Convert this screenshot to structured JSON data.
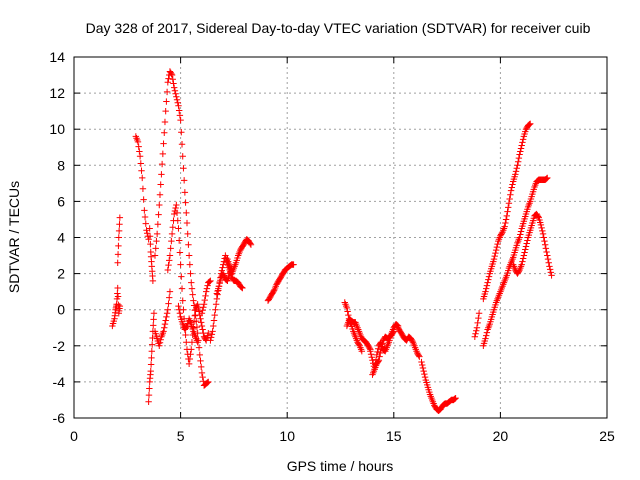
{
  "chart_data": {
    "type": "scatter",
    "title": "Day 328 of 2017, Sidereal Day-to-day VTEC variation (SDTVAR) for receiver cuib",
    "xlabel": "GPS time / hours",
    "ylabel": "SDTVAR / TECUs",
    "xlim": [
      0,
      25
    ],
    "ylim": [
      -6,
      14
    ],
    "xticks": [
      0,
      5,
      10,
      15,
      20,
      25
    ],
    "yticks": [
      -6,
      -4,
      -2,
      0,
      2,
      4,
      6,
      8,
      10,
      12,
      14
    ],
    "grid": true,
    "marker": "+",
    "color": "#ff0000",
    "tracks": [
      [
        [
          1.8,
          -0.9
        ],
        [
          1.9,
          -0.5
        ],
        [
          1.95,
          0
        ],
        [
          2.0,
          0.3
        ],
        [
          2.05,
          1.2
        ],
        [
          2.1,
          -0.2
        ],
        [
          2.15,
          0.2
        ]
      ],
      [
        [
          2.05,
          2.6
        ],
        [
          2.1,
          4.0
        ],
        [
          2.15,
          5.1
        ]
      ],
      [
        [
          2.9,
          9.6
        ],
        [
          3.0,
          9.3
        ],
        [
          3.1,
          8.5
        ],
        [
          3.2,
          7.3
        ],
        [
          3.3,
          5.5
        ],
        [
          3.4,
          4.4
        ],
        [
          3.5,
          3.9
        ]
      ],
      [
        [
          3.55,
          4.5
        ],
        [
          3.6,
          3.2
        ],
        [
          3.65,
          2.4
        ],
        [
          3.7,
          1.6
        ]
      ],
      [
        [
          3.5,
          -5.1
        ],
        [
          3.55,
          -4.0
        ],
        [
          3.6,
          -3.4
        ],
        [
          3.65,
          -2.3
        ],
        [
          3.7,
          -1.2
        ],
        [
          3.75,
          -0.2
        ]
      ],
      [
        [
          3.8,
          -1.2
        ],
        [
          3.9,
          -1.6
        ],
        [
          4.0,
          -2.0
        ],
        [
          4.1,
          -1.5
        ],
        [
          4.2,
          -1.2
        ],
        [
          4.3,
          -0.6
        ],
        [
          4.4,
          0
        ],
        [
          4.5,
          1.0
        ]
      ],
      [
        [
          3.8,
          3.0
        ],
        [
          3.9,
          4.2
        ],
        [
          4.0,
          5.8
        ],
        [
          4.1,
          7.5
        ],
        [
          4.2,
          9.2
        ],
        [
          4.3,
          11.0
        ],
        [
          4.4,
          12.6
        ],
        [
          4.5,
          13.2
        ],
        [
          4.6,
          13.0
        ],
        [
          4.7,
          12.3
        ],
        [
          4.8,
          11.8
        ],
        [
          4.9,
          11.3
        ],
        [
          5.0,
          10.5
        ],
        [
          5.1,
          8.5
        ],
        [
          5.2,
          6.5
        ],
        [
          5.3,
          4.8
        ],
        [
          5.4,
          3.0
        ],
        [
          5.5,
          1.5
        ],
        [
          5.6,
          0.5
        ],
        [
          5.7,
          -0.3
        ],
        [
          5.8,
          -1.3
        ],
        [
          5.9,
          -2.5
        ],
        [
          6.0,
          -3.5
        ],
        [
          6.1,
          -4.2
        ],
        [
          6.2,
          -4.1
        ],
        [
          6.3,
          -4.0
        ]
      ],
      [
        [
          4.4,
          2.2
        ],
        [
          4.5,
          3.0
        ],
        [
          4.6,
          4.2
        ],
        [
          4.7,
          5.3
        ],
        [
          4.8,
          5.8
        ],
        [
          4.9,
          4.5
        ],
        [
          5.0,
          2.5
        ],
        [
          5.1,
          0.5
        ],
        [
          5.2,
          -1.0
        ],
        [
          5.3,
          -2.2
        ],
        [
          5.4,
          -3.0
        ],
        [
          5.5,
          -2.2
        ],
        [
          5.6,
          -1.0
        ],
        [
          5.7,
          0
        ],
        [
          5.8,
          0.3
        ],
        [
          5.9,
          -0.3
        ],
        [
          6.0,
          -0.9
        ],
        [
          6.1,
          -1.5
        ],
        [
          6.2,
          -1.7
        ],
        [
          6.3,
          -1.3
        ]
      ],
      [
        [
          4.9,
          0.2
        ],
        [
          5.0,
          -0.4
        ],
        [
          5.1,
          -0.8
        ],
        [
          5.2,
          -1.1
        ],
        [
          5.3,
          -0.9
        ],
        [
          5.4,
          -0.5
        ],
        [
          5.5,
          -0.8
        ],
        [
          5.6,
          -1.2
        ],
        [
          5.7,
          -1.5
        ],
        [
          5.8,
          -1.8
        ]
      ],
      [
        [
          6.0,
          -0.2
        ],
        [
          6.1,
          0.3
        ],
        [
          6.2,
          1.0
        ],
        [
          6.3,
          1.5
        ],
        [
          6.4,
          1.6
        ]
      ],
      [
        [
          6.4,
          -1.7
        ],
        [
          6.5,
          -1.2
        ],
        [
          6.6,
          -0.3
        ],
        [
          6.7,
          0.6
        ],
        [
          6.8,
          1.3
        ],
        [
          6.9,
          2.0
        ],
        [
          7.0,
          2.5
        ],
        [
          7.1,
          3.0
        ],
        [
          7.2,
          2.6
        ],
        [
          7.3,
          2.2
        ],
        [
          7.4,
          1.8
        ],
        [
          7.5,
          1.6
        ],
        [
          7.6,
          1.6
        ],
        [
          7.7,
          1.5
        ],
        [
          7.8,
          1.3
        ],
        [
          7.9,
          1.2
        ]
      ],
      [
        [
          6.7,
          0.9
        ],
        [
          6.8,
          1.3
        ],
        [
          6.9,
          1.8
        ],
        [
          7.0,
          2.0
        ],
        [
          7.1,
          1.7
        ],
        [
          7.2,
          1.6
        ],
        [
          7.3,
          2.0
        ],
        [
          7.4,
          2.3
        ]
      ],
      [
        [
          7.2,
          2.8
        ],
        [
          7.3,
          2.4
        ],
        [
          7.4,
          2.0
        ],
        [
          7.5,
          2.3
        ],
        [
          7.6,
          2.6
        ],
        [
          7.7,
          3.0
        ],
        [
          7.8,
          3.3
        ],
        [
          7.9,
          3.5
        ],
        [
          8.0,
          3.7
        ],
        [
          8.1,
          3.9
        ],
        [
          8.2,
          3.8
        ],
        [
          8.3,
          3.6
        ]
      ],
      [
        [
          9.1,
          0.5
        ],
        [
          9.2,
          0.7
        ],
        [
          9.3,
          0.9
        ],
        [
          9.4,
          1.1
        ],
        [
          9.5,
          1.4
        ],
        [
          9.6,
          1.6
        ],
        [
          9.7,
          1.8
        ],
        [
          9.8,
          2.0
        ],
        [
          9.9,
          2.2
        ],
        [
          10.0,
          2.3
        ],
        [
          10.1,
          2.4
        ],
        [
          10.2,
          2.5
        ],
        [
          10.3,
          2.5
        ]
      ],
      [
        [
          12.7,
          0.4
        ],
        [
          12.8,
          0.1
        ],
        [
          12.9,
          -0.5
        ],
        [
          13.0,
          -0.6
        ],
        [
          13.1,
          -0.7
        ],
        [
          13.2,
          -0.7
        ],
        [
          13.3,
          -1.0
        ],
        [
          13.4,
          -1.3
        ],
        [
          13.5,
          -1.6
        ],
        [
          13.6,
          -1.7
        ],
        [
          13.7,
          -1.8
        ],
        [
          13.8,
          -2.0
        ],
        [
          13.9,
          -2.2
        ]
      ],
      [
        [
          12.8,
          -0.9
        ],
        [
          12.9,
          -0.6
        ],
        [
          13.0,
          -0.8
        ],
        [
          13.1,
          -1.2
        ],
        [
          13.2,
          -1.5
        ],
        [
          13.3,
          -1.8
        ],
        [
          13.4,
          -2.0
        ],
        [
          13.5,
          -2.3
        ]
      ],
      [
        [
          13.9,
          -2.3
        ],
        [
          14.0,
          -2.8
        ],
        [
          14.1,
          -3.3
        ],
        [
          14.2,
          -3.0
        ],
        [
          14.3,
          -2.8
        ],
        [
          14.4,
          -2.2
        ],
        [
          14.5,
          -1.7
        ],
        [
          14.6,
          -1.5
        ],
        [
          14.7,
          -1.6
        ],
        [
          14.8,
          -1.5
        ],
        [
          14.9,
          -1.4
        ],
        [
          15.0,
          -1.2
        ]
      ],
      [
        [
          14.0,
          -3.6
        ],
        [
          14.1,
          -3.3
        ],
        [
          14.2,
          -2.5
        ],
        [
          14.3,
          -2.0
        ],
        [
          14.4,
          -1.8
        ],
        [
          14.5,
          -2.2
        ],
        [
          14.6,
          -2.3
        ],
        [
          14.7,
          -2.0
        ],
        [
          14.8,
          -1.7
        ],
        [
          14.9,
          -1.3
        ],
        [
          15.0,
          -1.0
        ],
        [
          15.1,
          -0.8
        ],
        [
          15.2,
          -0.9
        ]
      ],
      [
        [
          15.2,
          -1.0
        ],
        [
          15.3,
          -1.2
        ],
        [
          15.4,
          -1.4
        ],
        [
          15.5,
          -1.6
        ],
        [
          15.6,
          -1.7
        ],
        [
          15.7,
          -1.5
        ],
        [
          15.8,
          -1.6
        ],
        [
          15.9,
          -1.8
        ],
        [
          16.0,
          -2.1
        ],
        [
          16.1,
          -2.4
        ],
        [
          16.2,
          -2.6
        ]
      ],
      [
        [
          16.3,
          -2.9
        ],
        [
          16.4,
          -3.4
        ],
        [
          16.5,
          -3.9
        ],
        [
          16.6,
          -4.3
        ],
        [
          16.7,
          -4.7
        ],
        [
          16.8,
          -5.0
        ],
        [
          16.9,
          -5.3
        ],
        [
          17.0,
          -5.5
        ],
        [
          17.1,
          -5.6
        ],
        [
          17.2,
          -5.5
        ],
        [
          17.3,
          -5.3
        ],
        [
          17.4,
          -5.2
        ],
        [
          17.5,
          -5.2
        ],
        [
          17.6,
          -5.1
        ],
        [
          17.7,
          -5.0
        ],
        [
          17.8,
          -5.0
        ],
        [
          17.9,
          -4.9
        ]
      ],
      [
        [
          18.8,
          -1.5
        ],
        [
          18.9,
          -1.0
        ],
        [
          19.0,
          -0.2
        ]
      ],
      [
        [
          19.2,
          0.6
        ],
        [
          19.3,
          1.0
        ],
        [
          19.4,
          1.5
        ],
        [
          19.5,
          2.0
        ],
        [
          19.6,
          2.4
        ],
        [
          19.7,
          2.8
        ],
        [
          19.8,
          3.3
        ],
        [
          19.9,
          3.8
        ],
        [
          20.0,
          4.1
        ],
        [
          20.1,
          4.3
        ],
        [
          20.2,
          4.6
        ],
        [
          20.3,
          5.2
        ],
        [
          20.4,
          5.9
        ],
        [
          20.5,
          6.6
        ],
        [
          20.6,
          7.1
        ],
        [
          20.7,
          7.5
        ],
        [
          20.8,
          8.0
        ],
        [
          20.9,
          8.6
        ],
        [
          21.0,
          9.1
        ],
        [
          21.1,
          9.6
        ],
        [
          21.2,
          10.0
        ],
        [
          21.3,
          10.2
        ],
        [
          21.4,
          10.3
        ]
      ],
      [
        [
          19.2,
          -2.0
        ],
        [
          19.3,
          -1.6
        ],
        [
          19.4,
          -1.1
        ],
        [
          19.5,
          -0.8
        ],
        [
          19.6,
          -0.4
        ],
        [
          19.7,
          0
        ],
        [
          19.8,
          0.4
        ],
        [
          19.9,
          0.7
        ],
        [
          20.0,
          1.0
        ],
        [
          20.1,
          1.3
        ],
        [
          20.2,
          1.6
        ],
        [
          20.3,
          1.9
        ],
        [
          20.4,
          2.3
        ],
        [
          20.5,
          2.6
        ],
        [
          20.6,
          2.9
        ],
        [
          20.7,
          3.3
        ],
        [
          20.8,
          3.7
        ],
        [
          20.9,
          4.0
        ],
        [
          21.0,
          4.5
        ],
        [
          21.1,
          4.9
        ],
        [
          21.2,
          5.3
        ],
        [
          21.3,
          5.7
        ],
        [
          21.4,
          6.0
        ],
        [
          21.5,
          6.4
        ],
        [
          21.6,
          6.8
        ],
        [
          21.7,
          7.1
        ],
        [
          21.8,
          7.2
        ],
        [
          21.9,
          7.2
        ],
        [
          22.0,
          7.2
        ],
        [
          22.1,
          7.2
        ],
        [
          22.2,
          7.3
        ]
      ],
      [
        [
          20.6,
          2.5
        ],
        [
          20.7,
          2.2
        ],
        [
          20.8,
          2.0
        ],
        [
          20.9,
          2.2
        ],
        [
          21.0,
          2.5
        ],
        [
          21.1,
          3.0
        ],
        [
          21.2,
          3.5
        ],
        [
          21.3,
          4.0
        ],
        [
          21.4,
          4.4
        ],
        [
          21.5,
          4.8
        ],
        [
          21.6,
          5.2
        ],
        [
          21.7,
          5.3
        ],
        [
          21.8,
          5.1
        ],
        [
          21.9,
          4.7
        ],
        [
          22.0,
          4.2
        ],
        [
          22.1,
          3.6
        ],
        [
          22.2,
          3.0
        ],
        [
          22.3,
          2.4
        ],
        [
          22.4,
          1.9
        ]
      ]
    ]
  }
}
